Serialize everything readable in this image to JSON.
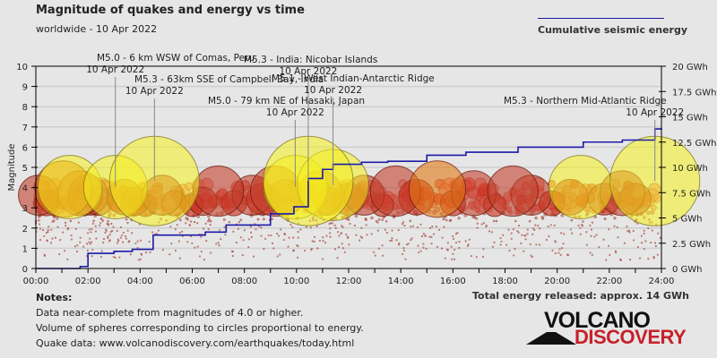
{
  "header": {
    "title": "Magnitude of quakes and energy vs time",
    "subtitle": "worldwide - 10 Apr 2022",
    "legend_label": "Cumulative seismic energy"
  },
  "notes": {
    "heading": "Notes:",
    "lines": [
      "Data near-complete from magnitudes of 4.0 or higher.",
      "Volume of spheres corresponding to circles proportional to energy.",
      "Quake data: www.volcanodiscovery.com/earthquakes/today.html"
    ]
  },
  "total_energy": "Total energy released: approx. 14 GWh",
  "logo": {
    "top": "VOLCANO",
    "bottom": "DISCOVERY"
  },
  "colors": {
    "energy_line": "#1a1aa8",
    "large_quake": "#f5f020",
    "medium_quake": "#c0301a",
    "small_quake": "#f08070",
    "logo_red": "#c8202a"
  },
  "chart_data": {
    "type": "scatter",
    "title": "Magnitude of quakes and energy vs time",
    "subtitle": "worldwide - 10 Apr 2022",
    "xlabel": "",
    "ylabel": "Magnitude",
    "y2label": "Cumulative seismic energy",
    "xlim_hours": [
      0,
      24
    ],
    "ylim": [
      0,
      10
    ],
    "y2lim_gwh": [
      0,
      20
    ],
    "grid": true,
    "legend": "top-right",
    "x_ticks": [
      "00:00",
      "02:00",
      "04:00",
      "06:00",
      "08:00",
      "10:00",
      "12:00",
      "14:00",
      "16:00",
      "18:00",
      "20:00",
      "22:00",
      "24:00"
    ],
    "y_ticks": [
      "0",
      "1",
      "2",
      "3",
      "4",
      "5",
      "6",
      "7",
      "8",
      "9",
      "10"
    ],
    "y2_ticks": [
      "0 GWh",
      "2.5 GWh",
      "5 GWh",
      "7.5 GWh",
      "10 GWh",
      "12.5 GWh",
      "15 GWh",
      "17.5 GWh",
      "20 GWh"
    ],
    "annotations": [
      {
        "label": "M5.0 - 6 km WSW of Comas, Peru",
        "date": "10 Apr 2022",
        "t": 3.05,
        "mag": 5.0
      },
      {
        "label": "M5.3 - 63km SSE of Campbell Bay, India",
        "date": "10 Apr 2022",
        "t": 4.55,
        "mag": 5.3
      },
      {
        "label": "M5.3 - India: Nicobar Islands",
        "date": "10 Apr 2022",
        "t": 10.45,
        "mag": 5.3
      },
      {
        "label": "M5.1 - West Indian-Antarctic Ridge",
        "date": "10 Apr 2022",
        "t": 11.4,
        "mag": 5.1
      },
      {
        "label": "M5.0 - 79 km NE of Hasaki, Japan",
        "date": "10 Apr 2022",
        "t": 9.95,
        "mag": 5.0
      },
      {
        "label": "M5.3 - Northern Mid-Atlantic Ridge",
        "date": "10 Apr 2022",
        "t": 23.75,
        "mag": 5.3
      }
    ],
    "large_quakes": [
      {
        "t": 0.1,
        "mag": 4.6
      },
      {
        "t": 0.4,
        "mag": 4.2
      },
      {
        "t": 1.05,
        "mag": 4.9
      },
      {
        "t": 1.3,
        "mag": 5.0
      },
      {
        "t": 1.7,
        "mag": 4.7
      },
      {
        "t": 2.0,
        "mag": 4.6
      },
      {
        "t": 2.4,
        "mag": 4.3
      },
      {
        "t": 3.05,
        "mag": 5.0
      },
      {
        "t": 4.55,
        "mag": 5.3
      },
      {
        "t": 3.4,
        "mag": 4.5
      },
      {
        "t": 3.8,
        "mag": 4.3
      },
      {
        "t": 4.2,
        "mag": 4.1
      },
      {
        "t": 4.85,
        "mag": 4.6
      },
      {
        "t": 5.3,
        "mag": 4.2
      },
      {
        "t": 6.0,
        "mag": 4.1
      },
      {
        "t": 6.4,
        "mag": 4.3
      },
      {
        "t": 7.0,
        "mag": 4.8
      },
      {
        "t": 7.6,
        "mag": 4.2
      },
      {
        "t": 8.3,
        "mag": 4.6
      },
      {
        "t": 8.7,
        "mag": 4.4
      },
      {
        "t": 9.2,
        "mag": 4.8
      },
      {
        "t": 9.6,
        "mag": 4.5
      },
      {
        "t": 9.95,
        "mag": 5.0
      },
      {
        "t": 10.45,
        "mag": 5.3
      },
      {
        "t": 11.4,
        "mag": 5.1
      },
      {
        "t": 10.9,
        "mag": 4.7
      },
      {
        "t": 11.2,
        "mag": 4.3
      },
      {
        "t": 12.0,
        "mag": 4.4
      },
      {
        "t": 12.6,
        "mag": 4.6
      },
      {
        "t": 13.3,
        "mag": 4.1
      },
      {
        "t": 13.8,
        "mag": 4.8
      },
      {
        "t": 14.6,
        "mag": 4.5
      },
      {
        "t": 15.4,
        "mag": 4.9
      },
      {
        "t": 16.0,
        "mag": 4.2
      },
      {
        "t": 16.8,
        "mag": 4.7
      },
      {
        "t": 17.6,
        "mag": 4.1
      },
      {
        "t": 18.3,
        "mag": 4.8
      },
      {
        "t": 19.0,
        "mag": 4.6
      },
      {
        "t": 19.8,
        "mag": 4.2
      },
      {
        "t": 20.5,
        "mag": 4.5
      },
      {
        "t": 20.9,
        "mag": 5.0
      },
      {
        "t": 21.8,
        "mag": 4.4
      },
      {
        "t": 22.5,
        "mag": 4.7
      },
      {
        "t": 23.0,
        "mag": 4.4
      },
      {
        "t": 23.75,
        "mag": 5.3
      }
    ],
    "cumulative_energy_gwh": [
      {
        "t": 0.0,
        "e": 0.0
      },
      {
        "t": 1.7,
        "e": 0.2
      },
      {
        "t": 2.0,
        "e": 1.5
      },
      {
        "t": 3.0,
        "e": 1.7
      },
      {
        "t": 3.7,
        "e": 1.9
      },
      {
        "t": 4.5,
        "e": 3.3
      },
      {
        "t": 6.5,
        "e": 3.6
      },
      {
        "t": 7.3,
        "e": 4.3
      },
      {
        "t": 9.0,
        "e": 5.4
      },
      {
        "t": 9.9,
        "e": 6.1
      },
      {
        "t": 10.45,
        "e": 8.9
      },
      {
        "t": 11.0,
        "e": 9.8
      },
      {
        "t": 11.4,
        "e": 10.3
      },
      {
        "t": 12.5,
        "e": 10.5
      },
      {
        "t": 13.5,
        "e": 10.6
      },
      {
        "t": 15.0,
        "e": 11.2
      },
      {
        "t": 16.5,
        "e": 11.5
      },
      {
        "t": 18.5,
        "e": 12.0
      },
      {
        "t": 21.0,
        "e": 12.5
      },
      {
        "t": 22.5,
        "e": 12.7
      },
      {
        "t": 23.75,
        "e": 13.8
      },
      {
        "t": 24.0,
        "e": 13.9
      }
    ]
  }
}
